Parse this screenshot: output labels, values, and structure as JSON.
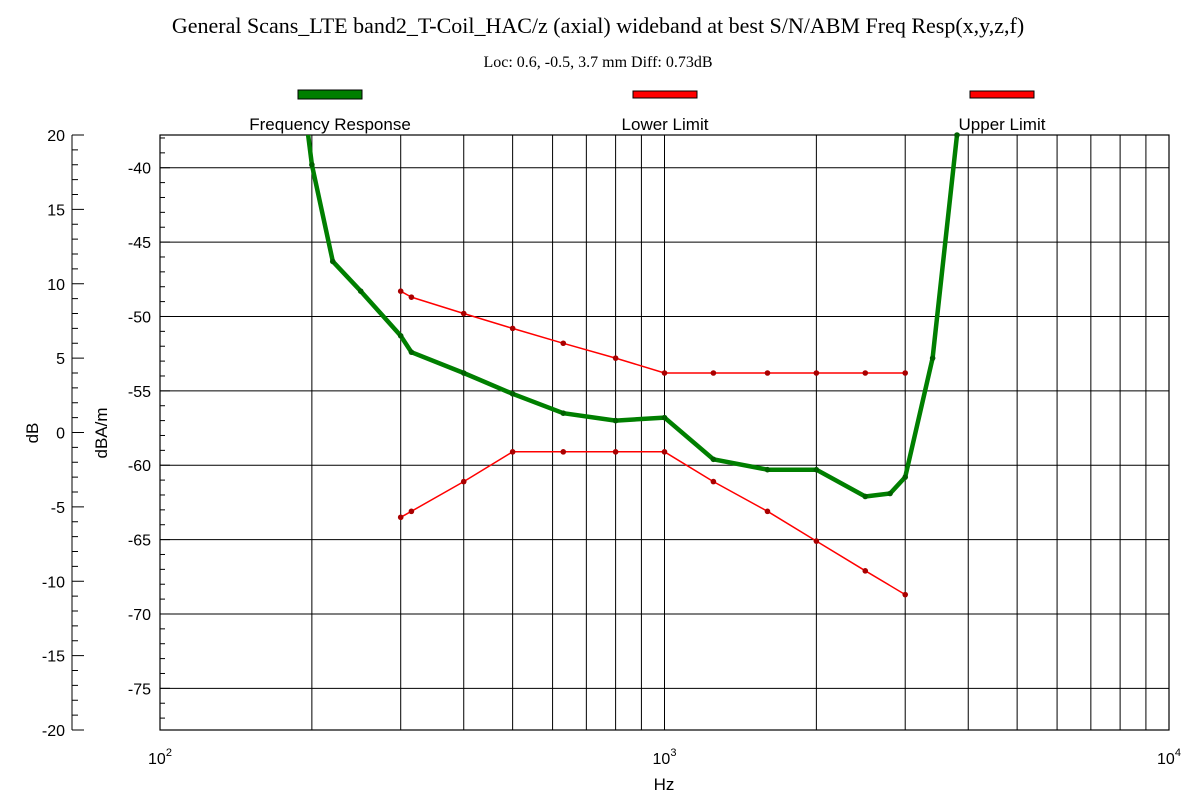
{
  "chart_data": {
    "type": "line",
    "title": "General Scans_LTE band2_T-Coil_HAC/z (axial) wideband at best S/N/ABM Freq Resp(x,y,z,f)",
    "subtitle": "Loc: 0.6, -0.5, 3.7 mm Diff: 0.73dB",
    "xlabel": "Hz",
    "ylabel_left": "dB",
    "ylabel_inner": "dBA/m",
    "x_scale": "log",
    "xlim": [
      100,
      10000
    ],
    "x_ticks": [
      {
        "value": 100,
        "base": "10",
        "exp": "2"
      },
      {
        "value": 1000,
        "base": "10",
        "exp": "3"
      },
      {
        "value": 10000,
        "base": "10",
        "exp": "4"
      }
    ],
    "ylim_left": [
      -20,
      20
    ],
    "y_ticks_left": [
      "20",
      "15",
      "10",
      "5",
      "0",
      "-5",
      "-10",
      "-15",
      "-20"
    ],
    "ylim_inner": [
      -77.8,
      -37.8
    ],
    "y_ticks_inner": [
      "-40",
      "-45",
      "-50",
      "-55",
      "-60",
      "-65",
      "-70",
      "-75"
    ],
    "legend_position": "top",
    "grid": true,
    "series": [
      {
        "name": "Frequency Response",
        "color": "#007f00",
        "unit": "dB",
        "x": [
          190,
          200,
          220,
          250,
          300,
          315,
          400,
          500,
          630,
          800,
          1000,
          1250,
          1600,
          2000,
          2500,
          2800,
          3000,
          3400,
          3800
        ],
        "y": [
          24,
          18,
          11.5,
          9.5,
          6.5,
          5.4,
          4.0,
          2.6,
          1.3,
          0.8,
          1.0,
          -1.8,
          -2.5,
          -2.5,
          -4.3,
          -4.1,
          -3.0,
          5.0,
          20.0
        ]
      },
      {
        "name": "Lower Limit",
        "color": "#ff0000",
        "unit": "dBA/m",
        "x": [
          300,
          315,
          400,
          500,
          630,
          800,
          1000,
          1250,
          1600,
          2000,
          2500,
          3000
        ],
        "y": [
          -63.5,
          -63.1,
          -61.1,
          -59.1,
          -59.1,
          -59.1,
          -59.1,
          -61.1,
          -63.1,
          -65.1,
          -67.1,
          -68.7
        ]
      },
      {
        "name": "Upper Limit",
        "color": "#ff0000",
        "unit": "dBA/m",
        "x": [
          300,
          315,
          400,
          500,
          630,
          800,
          1000,
          1250,
          1600,
          2000,
          2500,
          3000
        ],
        "y": [
          -48.3,
          -48.7,
          -49.8,
          -50.8,
          -51.8,
          -52.8,
          -53.8,
          -53.8,
          -53.8,
          -53.8,
          -53.8,
          -53.8
        ]
      }
    ]
  }
}
